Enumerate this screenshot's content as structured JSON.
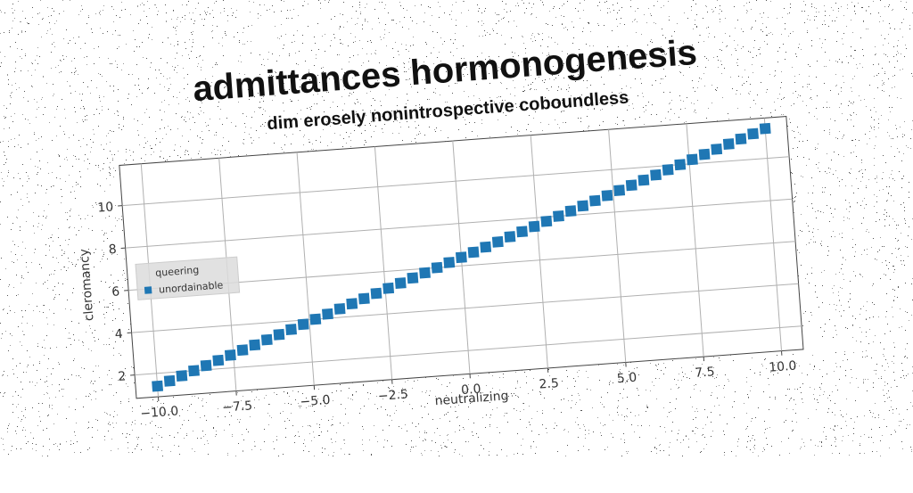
{
  "chart_data": {
    "type": "scatter",
    "title": "admittances hormonogenesis",
    "subtitle": "dim erosely nonintrospective coboundless",
    "xlabel": "neutralizing",
    "ylabel": "cleromancy",
    "xlim": [
      -10.7,
      10.7
    ],
    "ylim": [
      0.9,
      11.9
    ],
    "xticks": [
      -10.0,
      -7.5,
      -5.0,
      -2.5,
      0.0,
      2.5,
      5.0,
      7.5,
      10.0
    ],
    "xtick_labels": [
      "−10.0",
      "−7.5",
      "−5.0",
      "−2.5",
      "0.0",
      "2.5",
      "5.0",
      "7.5",
      "10.0"
    ],
    "yticks": [
      2,
      4,
      6,
      8,
      10
    ],
    "ytick_labels": [
      "2",
      "4",
      "6",
      "8",
      "10"
    ],
    "grid": true,
    "legend": {
      "title": "queering",
      "placement": "center-left",
      "entries": [
        {
          "label": "unordainable",
          "color": "#1f77b4",
          "marker": "square"
        }
      ]
    },
    "series": [
      {
        "name": "unordainable",
        "color": "#1f77b4",
        "marker": "square",
        "x": [
          -10.0,
          -9.6,
          -9.2,
          -8.8,
          -8.4,
          -8.0,
          -7.6,
          -7.2,
          -6.8,
          -6.4,
          -6.0,
          -5.6,
          -5.2,
          -4.8,
          -4.4,
          -4.0,
          -3.6,
          -3.2,
          -2.8,
          -2.4,
          -2.0,
          -1.6,
          -1.2,
          -0.8,
          -0.4,
          0.0,
          0.4,
          0.8,
          1.2,
          1.6,
          2.0,
          2.4,
          2.8,
          3.2,
          3.6,
          4.0,
          4.4,
          4.8,
          5.2,
          5.6,
          6.0,
          6.4,
          6.8,
          7.2,
          7.6,
          8.0,
          8.4,
          8.8,
          9.2,
          9.6,
          10.0
        ],
        "y": [
          1.4,
          1.6,
          1.8,
          2.0,
          2.2,
          2.4,
          2.6,
          2.8,
          3.0,
          3.2,
          3.4,
          3.6,
          3.8,
          4.0,
          4.2,
          4.4,
          4.6,
          4.8,
          5.0,
          5.2,
          5.4,
          5.6,
          5.8,
          6.0,
          6.2,
          6.4,
          6.6,
          6.8,
          7.0,
          7.2,
          7.4,
          7.6,
          7.8,
          8.0,
          8.2,
          8.4,
          8.6,
          8.8,
          9.0,
          9.2,
          9.4,
          9.6,
          9.8,
          10.0,
          10.2,
          10.4,
          10.6,
          10.8,
          11.0,
          11.2,
          11.4
        ]
      }
    ]
  }
}
